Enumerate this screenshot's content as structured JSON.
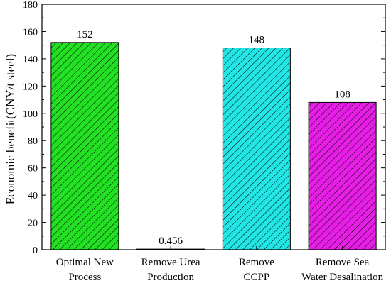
{
  "chart_data": {
    "type": "bar",
    "ylabel": "Economic benefit(CNY/t steel)",
    "xlabel": "",
    "ylim": [
      0,
      180
    ],
    "yticks": [
      0,
      20,
      40,
      60,
      80,
      100,
      120,
      140,
      160,
      180
    ],
    "grid": false,
    "bar_pattern": "diagonal-hatch",
    "categories": [
      {
        "lines": [
          "Optimal New",
          "Process"
        ]
      },
      {
        "lines": [
          "Remove Urea",
          "Production"
        ]
      },
      {
        "lines": [
          "Remove",
          "CCPP"
        ]
      },
      {
        "lines": [
          "Remove Sea",
          "Water Desalination"
        ]
      }
    ],
    "values": [
      152,
      0.456,
      148,
      108
    ],
    "value_labels": [
      "152",
      "0.456",
      "148",
      "108"
    ],
    "colors": [
      "#22e022",
      "#8b4a1e",
      "#22e6e6",
      "#e61ee6"
    ]
  }
}
